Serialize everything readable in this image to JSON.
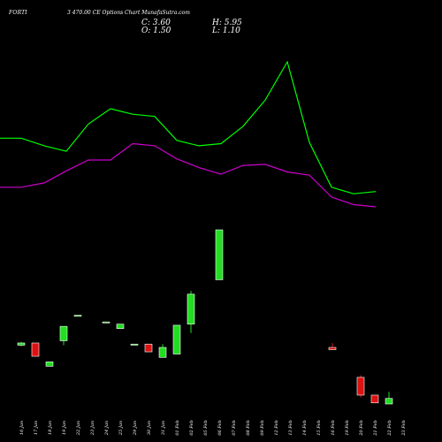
{
  "header": {
    "symbol": "FORTI",
    "subtitle": "3 470.00 CE Options Chart MunafaSutra.com",
    "close": "C: 3.60",
    "open": "O: 1.50",
    "high": "H: 5.95",
    "low": "L: 1.10"
  },
  "chart_data": {
    "type": "candlestick",
    "dates": [
      "16 Jan",
      "17 Jan",
      "18 Jan",
      "19 Jan",
      "22 Jan",
      "23 Jan",
      "24 Jan",
      "25 Jan",
      "29 Jan",
      "30 Jan",
      "31 Jan",
      "01 Feb",
      "02 Feb",
      "05 Feb",
      "06 Feb",
      "07 Feb",
      "08 Feb",
      "09 Feb",
      "12 Feb",
      "13 Feb",
      "14 Feb",
      "15 Feb",
      "16 Feb",
      "19 Feb",
      "20 Feb",
      "21 Feb",
      "22 Feb",
      "23 Feb"
    ],
    "candle_dates": [
      "16 Jan",
      "17 Jan",
      "18 Jan",
      "19 Jan",
      "22 Jan",
      "24 Jan",
      "25 Jan",
      "29 Jan",
      "30 Jan",
      "31 Jan",
      "01 Feb",
      "02 Feb",
      "06 Feb",
      "16 Feb",
      "20 Feb",
      "21 Feb",
      "22 Feb"
    ],
    "candles": [
      {
        "open": 2.65,
        "close": 2.75,
        "high": 2.8,
        "low": 2.6,
        "color": "#22dd22"
      },
      {
        "open": 2.75,
        "close": 2.15,
        "high": 2.75,
        "low": 2.15,
        "color": "#dd1111"
      },
      {
        "open": 1.7,
        "close": 1.9,
        "high": 1.9,
        "low": 1.7,
        "color": "#22dd22"
      },
      {
        "open": 2.85,
        "close": 3.5,
        "high": 3.5,
        "low": 2.65,
        "color": "#22dd22"
      },
      {
        "open": 4.0,
        "close": 4.0,
        "high": 4.0,
        "low": 4.0,
        "color": "#22dd22"
      },
      {
        "open": 3.7,
        "close": 3.7,
        "high": 3.7,
        "low": 3.7,
        "color": "#22dd22"
      },
      {
        "open": 3.4,
        "close": 3.6,
        "high": 3.6,
        "low": 3.4,
        "color": "#22dd22"
      },
      {
        "open": 2.7,
        "close": 2.7,
        "high": 2.7,
        "low": 2.7,
        "color": "#22dd22"
      },
      {
        "open": 2.7,
        "close": 2.35,
        "high": 2.7,
        "low": 2.35,
        "color": "#dd1111"
      },
      {
        "open": 2.1,
        "close": 2.55,
        "high": 2.7,
        "low": 2.1,
        "color": "#22dd22"
      },
      {
        "open": 2.25,
        "close": 3.55,
        "high": 3.55,
        "low": 2.25,
        "color": "#22dd22"
      },
      {
        "open": 3.6,
        "close": 4.95,
        "high": 5.1,
        "low": 3.2,
        "color": "#22dd22"
      },
      {
        "open": 5.6,
        "close": 7.85,
        "high": 7.85,
        "low": 5.6,
        "color": "#22dd22"
      },
      {
        "open": 2.55,
        "close": 2.45,
        "high": 2.75,
        "low": 2.45,
        "color": "#dd1111"
      },
      {
        "open": 1.2,
        "close": 0.4,
        "high": 1.3,
        "low": 0.3,
        "color": "#dd1111"
      },
      {
        "open": 0.4,
        "close": 0.05,
        "high": 0.4,
        "low": 0.05,
        "color": "#dd1111"
      },
      {
        "open": 0.0,
        "close": 0.25,
        "high": 0.55,
        "low": 0.0,
        "color": "#22dd22"
      }
    ],
    "line_series": [
      {
        "color": "#00ff00",
        "values": [
          1.0,
          1.0,
          0.93,
          0.88,
          1.13,
          1.27,
          1.22,
          1.2,
          0.98,
          0.93,
          0.95,
          1.11,
          1.35,
          1.7,
          0.96,
          0.55,
          0.49,
          0.51
        ]
      },
      {
        "color": "#cc00cc",
        "values": [
          0.55,
          0.55,
          0.59,
          0.7,
          0.8,
          0.8,
          0.95,
          0.93,
          0.81,
          0.73,
          0.67,
          0.75,
          0.76,
          0.69,
          0.66,
          0.46,
          0.39,
          0.37
        ]
      }
    ]
  }
}
